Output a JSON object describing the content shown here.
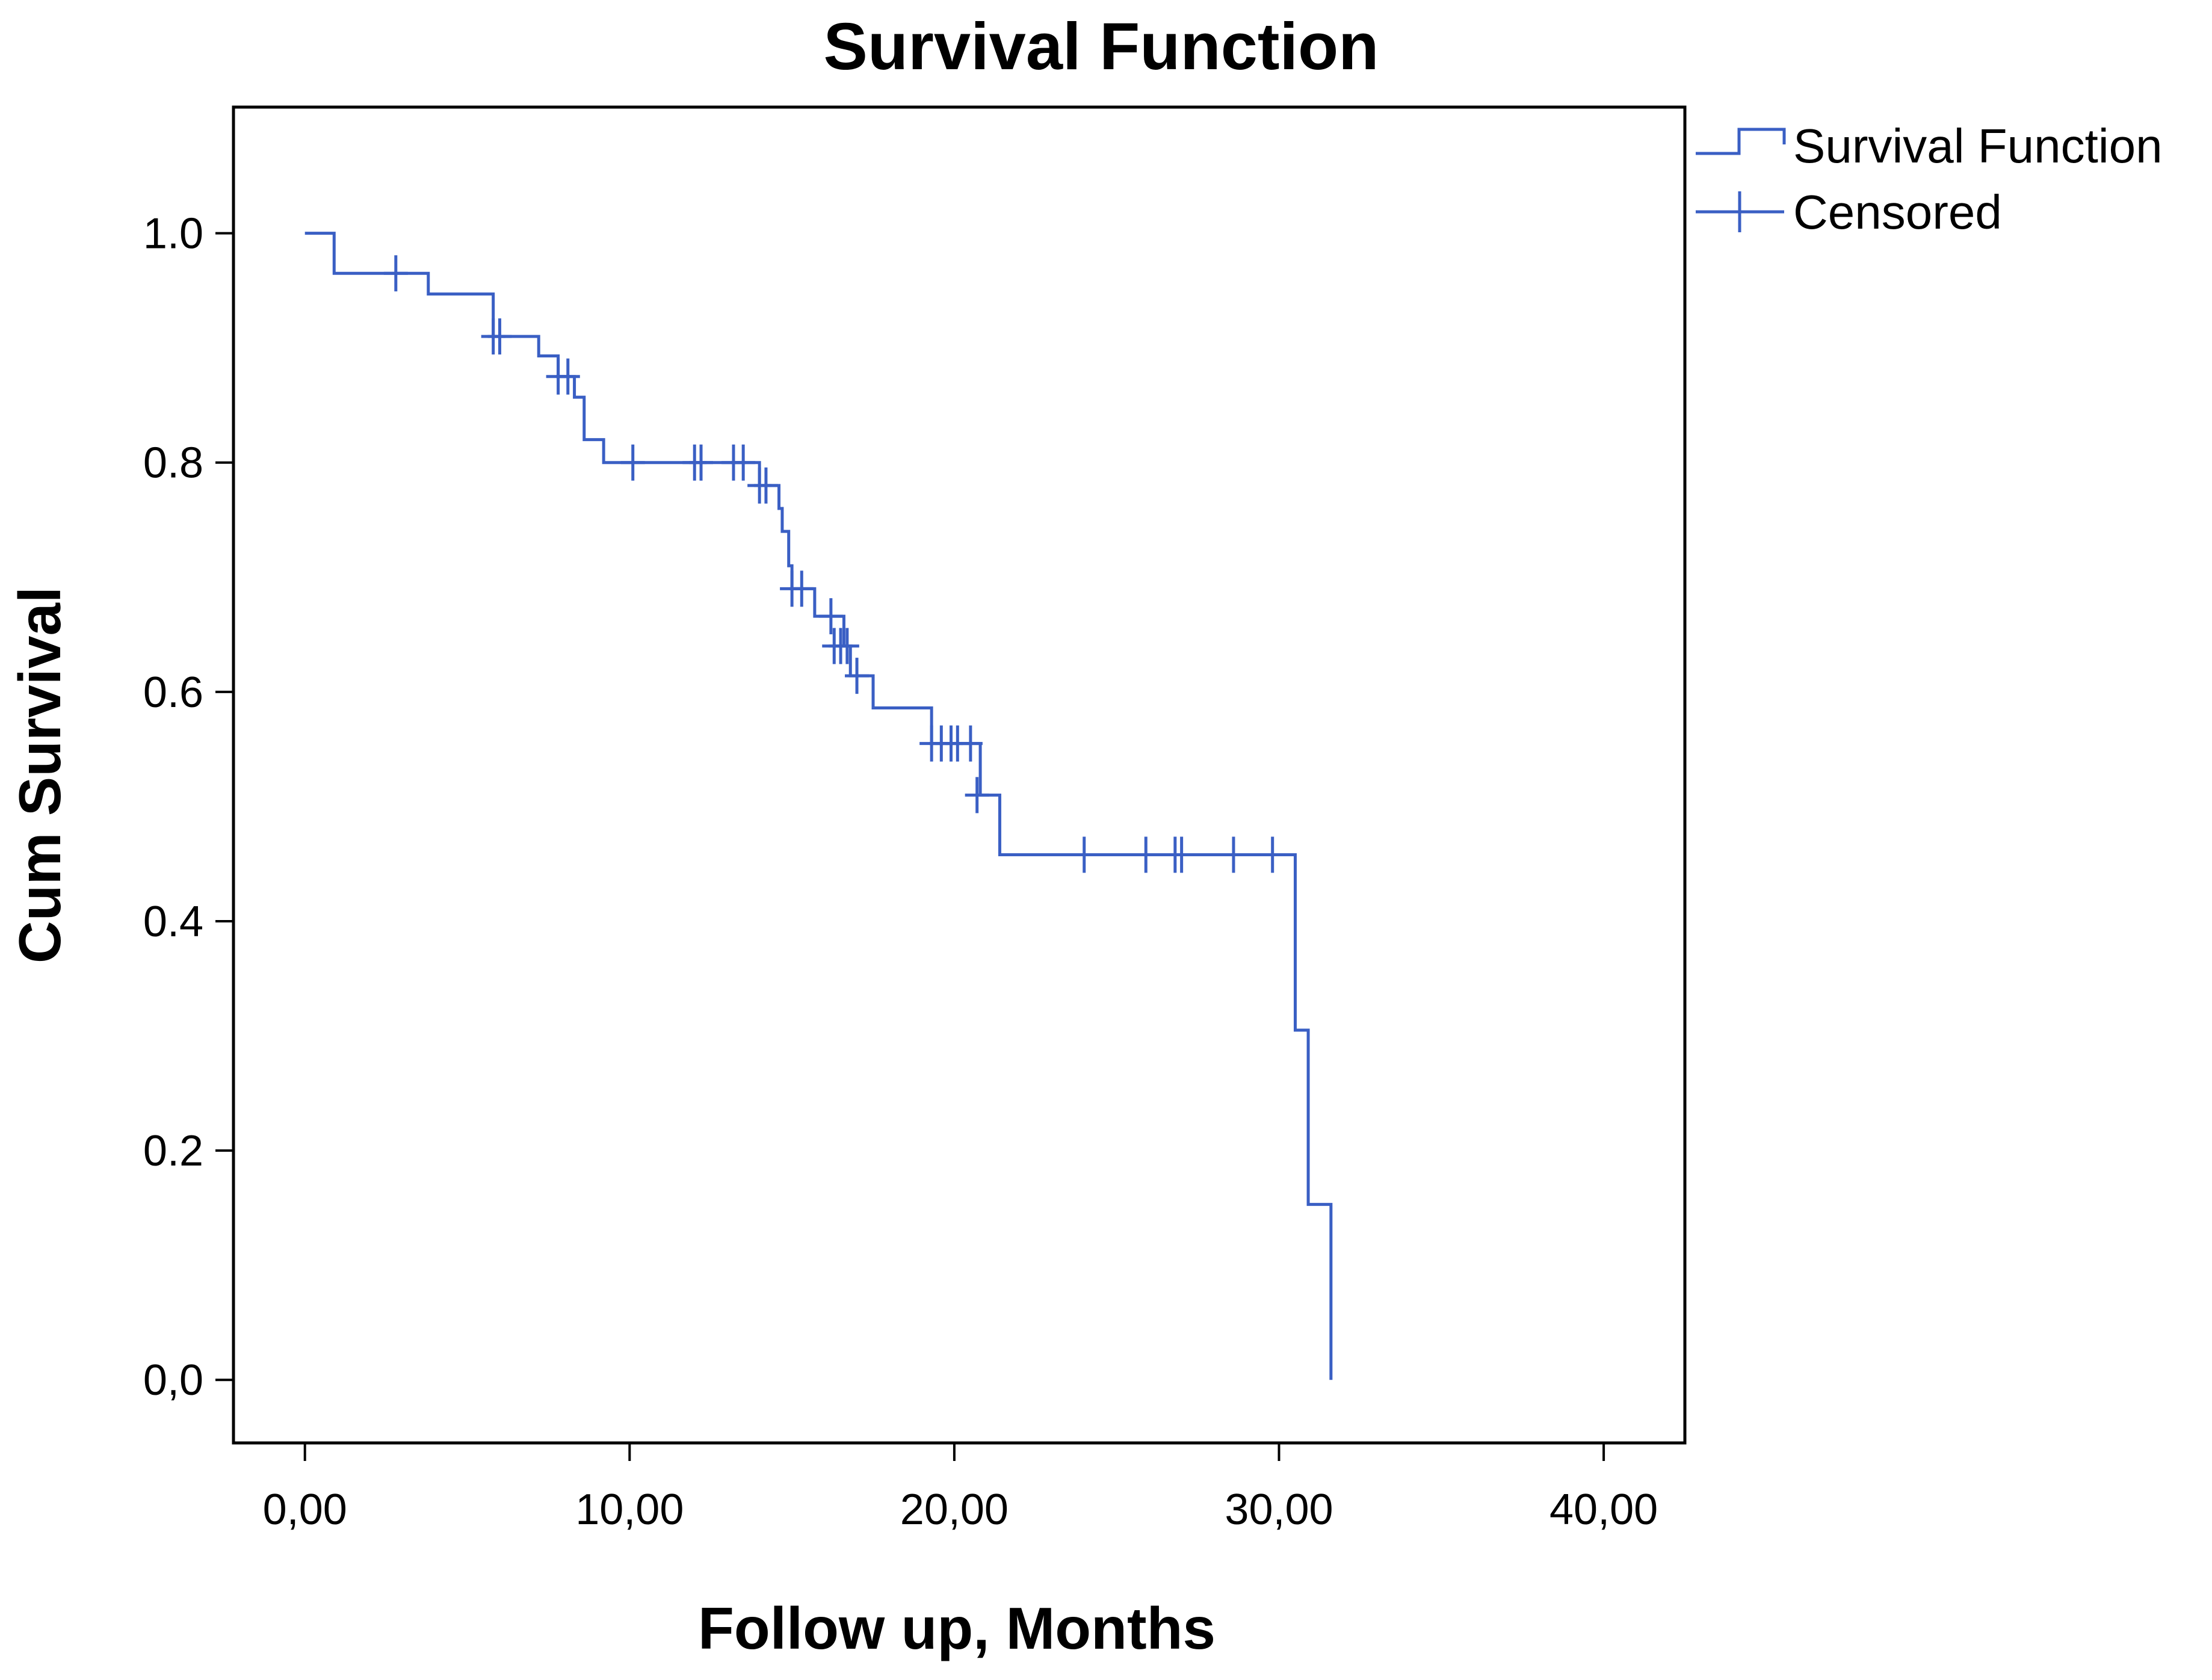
{
  "chart_data": {
    "type": "line",
    "subtype": "kaplan-meier",
    "title": "Survival Function",
    "xlabel": "Follow up, Months",
    "ylabel": "Cum Survival",
    "xlim": [
      -2.2,
      42.5
    ],
    "ylim": [
      -0.055,
      1.11
    ],
    "x_ticks": [
      0,
      10,
      20,
      30,
      40
    ],
    "x_tick_labels": [
      "0,00",
      "10,00",
      "20,00",
      "30,00",
      "40,00"
    ],
    "y_ticks": [
      0,
      0.2,
      0.4,
      0.6,
      0.8,
      1.0
    ],
    "y_tick_labels": [
      "0,0",
      "0.2",
      "0.4",
      "0.6",
      "0.8",
      "1.0"
    ],
    "legend": {
      "position": "top-right-outside",
      "entries": [
        {
          "label": "Survival Function",
          "kind": "step"
        },
        {
          "label": "Censored",
          "kind": "cross"
        }
      ]
    },
    "series": [
      {
        "name": "Survival Function",
        "steps": [
          {
            "x": 0.0,
            "y": 1.0
          },
          {
            "x": 0.9,
            "y": 0.965
          },
          {
            "x": 3.8,
            "y": 0.947
          },
          {
            "x": 5.8,
            "y": 0.91
          },
          {
            "x": 7.2,
            "y": 0.893
          },
          {
            "x": 7.8,
            "y": 0.875
          },
          {
            "x": 8.3,
            "y": 0.857
          },
          {
            "x": 8.6,
            "y": 0.82
          },
          {
            "x": 9.2,
            "y": 0.8
          },
          {
            "x": 14.0,
            "y": 0.78
          },
          {
            "x": 14.6,
            "y": 0.76
          },
          {
            "x": 14.7,
            "y": 0.74
          },
          {
            "x": 14.9,
            "y": 0.71
          },
          {
            "x": 15.0,
            "y": 0.69
          },
          {
            "x": 15.7,
            "y": 0.666
          },
          {
            "x": 16.6,
            "y": 0.64
          },
          {
            "x": 16.8,
            "y": 0.614
          },
          {
            "x": 17.5,
            "y": 0.586
          },
          {
            "x": 19.3,
            "y": 0.555
          },
          {
            "x": 20.8,
            "y": 0.51
          },
          {
            "x": 21.4,
            "y": 0.458
          },
          {
            "x": 30.5,
            "y": 0.305
          },
          {
            "x": 30.9,
            "y": 0.153
          },
          {
            "x": 31.6,
            "y": 0.0
          }
        ],
        "censored": [
          {
            "x": 2.8,
            "y": 0.965
          },
          {
            "x": 5.8,
            "y": 0.91
          },
          {
            "x": 6.0,
            "y": 0.91
          },
          {
            "x": 7.8,
            "y": 0.875
          },
          {
            "x": 8.1,
            "y": 0.875
          },
          {
            "x": 10.1,
            "y": 0.8
          },
          {
            "x": 12.0,
            "y": 0.8
          },
          {
            "x": 12.2,
            "y": 0.8
          },
          {
            "x": 13.2,
            "y": 0.8
          },
          {
            "x": 13.5,
            "y": 0.8
          },
          {
            "x": 14.0,
            "y": 0.78
          },
          {
            "x": 14.2,
            "y": 0.78
          },
          {
            "x": 15.0,
            "y": 0.69
          },
          {
            "x": 15.3,
            "y": 0.69
          },
          {
            "x": 16.2,
            "y": 0.666
          },
          {
            "x": 16.3,
            "y": 0.64
          },
          {
            "x": 16.5,
            "y": 0.64
          },
          {
            "x": 16.7,
            "y": 0.64
          },
          {
            "x": 17.0,
            "y": 0.614
          },
          {
            "x": 19.3,
            "y": 0.555
          },
          {
            "x": 19.6,
            "y": 0.555
          },
          {
            "x": 19.9,
            "y": 0.555
          },
          {
            "x": 20.1,
            "y": 0.555
          },
          {
            "x": 20.5,
            "y": 0.555
          },
          {
            "x": 20.7,
            "y": 0.51
          },
          {
            "x": 24.0,
            "y": 0.458
          },
          {
            "x": 25.9,
            "y": 0.458
          },
          {
            "x": 26.8,
            "y": 0.458
          },
          {
            "x": 27.0,
            "y": 0.458
          },
          {
            "x": 28.6,
            "y": 0.458
          },
          {
            "x": 29.8,
            "y": 0.458
          }
        ]
      }
    ]
  },
  "colors": {
    "series": "#3a5fc4",
    "axis": "#000000",
    "background": "#ffffff"
  }
}
